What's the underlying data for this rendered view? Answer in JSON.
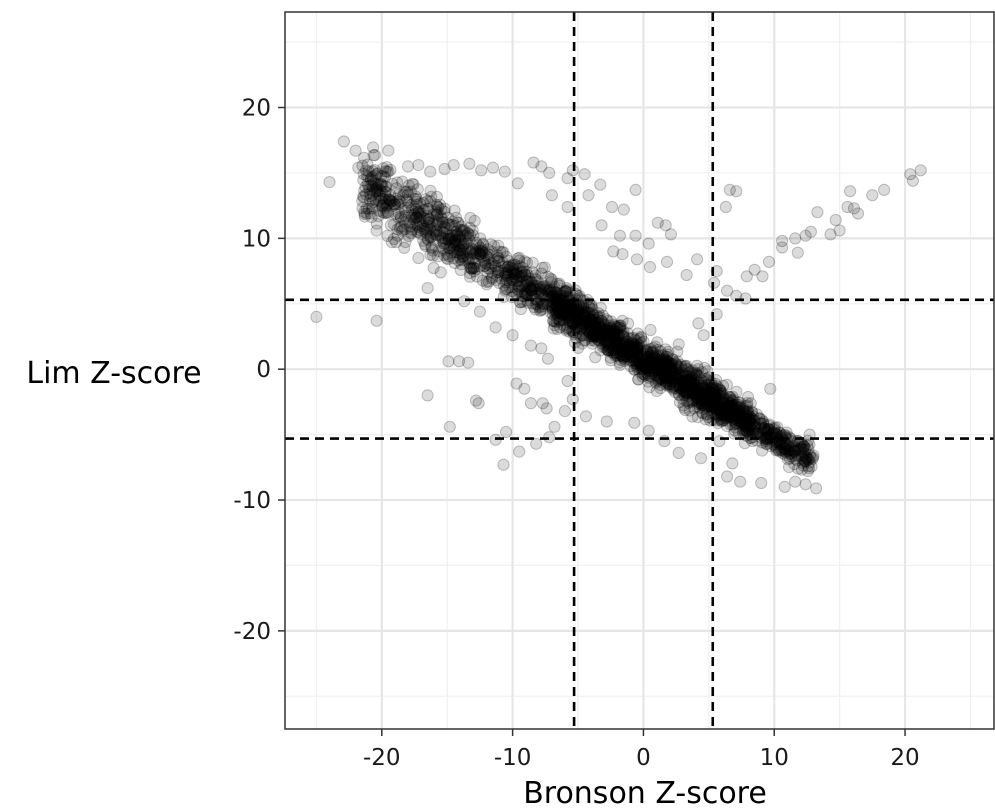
{
  "chart_data": {
    "type": "scatter",
    "title": "",
    "xlabel": "Bronson Z-score",
    "ylabel": "Lim Z-score",
    "xlim": [
      -27.4,
      26.8
    ],
    "ylim": [
      -27.5,
      27.3
    ],
    "x_ticks": [
      -20,
      -10,
      0,
      10,
      20
    ],
    "y_ticks": [
      20,
      10,
      0,
      -10,
      -20
    ],
    "grid": true,
    "point_color": "#000000",
    "point_opacity": 0.14,
    "reference_lines": {
      "vertical": [
        -5.3,
        5.3
      ],
      "horizontal": [
        5.3,
        -5.3
      ],
      "style": "dashed"
    },
    "main_trend": {
      "slope": -0.62,
      "intercept": 0.9
    },
    "points": [
      [
        -22.9,
        17.4
      ],
      [
        -22.0,
        16.7
      ],
      [
        -24.0,
        14.3
      ],
      [
        -21.8,
        15.4
      ],
      [
        -21.2,
        15.2
      ],
      [
        -20.4,
        14.9
      ],
      [
        -19.6,
        15.1
      ],
      [
        -18.0,
        15.5
      ],
      [
        -17.2,
        15.6
      ],
      [
        -16.3,
        15.1
      ],
      [
        -15.2,
        15.3
      ],
      [
        -14.5,
        15.6
      ],
      [
        -13.3,
        15.7
      ],
      [
        -12.4,
        15.2
      ],
      [
        -11.5,
        15.4
      ],
      [
        -10.6,
        15.1
      ],
      [
        -9.6,
        14.2
      ],
      [
        -8.4,
        15.8
      ],
      [
        -7.8,
        15.5
      ],
      [
        -7.2,
        15.0
      ],
      [
        -7.0,
        13.3
      ],
      [
        -5.8,
        14.6
      ],
      [
        -5.4,
        15.2
      ],
      [
        -4.5,
        14.9
      ],
      [
        -5.8,
        12.4
      ],
      [
        -4.2,
        13.3
      ],
      [
        -3.3,
        14.1
      ],
      [
        -2.4,
        12.4
      ],
      [
        -1.5,
        12.2
      ],
      [
        -0.6,
        13.7
      ],
      [
        1.1,
        11.2
      ],
      [
        1.7,
        11.0
      ],
      [
        2.1,
        10.3
      ],
      [
        0.4,
        9.6
      ],
      [
        -0.6,
        10.2
      ],
      [
        -1.8,
        10.2
      ],
      [
        -3.2,
        11.0
      ],
      [
        -2.3,
        9.0
      ],
      [
        -1.6,
        8.8
      ],
      [
        -0.5,
        8.4
      ],
      [
        0.5,
        7.8
      ],
      [
        1.8,
        8.2
      ],
      [
        4.1,
        8.4
      ],
      [
        3.3,
        7.2
      ],
      [
        5.6,
        7.5
      ],
      [
        5.4,
        6.6
      ],
      [
        6.4,
        6.0
      ],
      [
        7.8,
        5.4
      ],
      [
        6.6,
        13.7
      ],
      [
        7.1,
        13.6
      ],
      [
        6.3,
        12.4
      ],
      [
        10.6,
        9.8
      ],
      [
        11.6,
        10.0
      ],
      [
        13.3,
        12.0
      ],
      [
        14.7,
        11.4
      ],
      [
        15.6,
        12.4
      ],
      [
        16.4,
        11.9
      ],
      [
        17.5,
        13.3
      ],
      [
        18.4,
        13.7
      ],
      [
        20.4,
        14.9
      ],
      [
        21.2,
        15.2
      ],
      [
        20.6,
        14.4
      ],
      [
        15.0,
        10.6
      ],
      [
        14.3,
        10.3
      ],
      [
        12.8,
        10.5
      ],
      [
        10.6,
        9.3
      ],
      [
        11.8,
        8.9
      ],
      [
        9.6,
        8.2
      ],
      [
        8.5,
        7.6
      ],
      [
        7.9,
        7.1
      ],
      [
        9.1,
        7.1
      ],
      [
        7.1,
        5.6
      ],
      [
        15.8,
        13.6
      ],
      [
        16.1,
        12.3
      ],
      [
        12.4,
        10.2
      ],
      [
        -25.0,
        4.0
      ],
      [
        -20.4,
        3.7
      ],
      [
        -16.5,
        6.2
      ],
      [
        -14.9,
        0.6
      ],
      [
        -14.1,
        0.6
      ],
      [
        -13.4,
        0.5
      ],
      [
        -16.5,
        -2.0
      ],
      [
        -14.8,
        -4.4
      ],
      [
        -12.8,
        -2.4
      ],
      [
        -12.6,
        -2.6
      ],
      [
        -10.5,
        -4.8
      ],
      [
        -11.3,
        -5.4
      ],
      [
        -10.7,
        -7.3
      ],
      [
        -9.5,
        -6.3
      ],
      [
        -8.2,
        -5.7
      ],
      [
        -7.2,
        -5.2
      ],
      [
        -6.8,
        -4.4
      ],
      [
        -9.7,
        -1.1
      ],
      [
        -9.1,
        -1.5
      ],
      [
        -8.6,
        -2.6
      ],
      [
        -7.7,
        -2.6
      ],
      [
        -7.4,
        -3.0
      ],
      [
        -6.0,
        -3.2
      ],
      [
        -5.4,
        -2.3
      ],
      [
        -5.8,
        -0.9
      ],
      [
        -7.3,
        0.8
      ],
      [
        -7.8,
        1.6
      ],
      [
        -8.6,
        1.8
      ],
      [
        -10.0,
        2.6
      ],
      [
        -11.3,
        3.2
      ],
      [
        -12.5,
        4.4
      ],
      [
        -13.7,
        5.2
      ],
      [
        -15.5,
        7.4
      ],
      [
        -17.2,
        8.5
      ],
      [
        -18.8,
        10.2
      ],
      [
        -20.2,
        12.1
      ],
      [
        -19.0,
        12.6
      ],
      [
        -21.0,
        14.0
      ],
      [
        6.4,
        -8.2
      ],
      [
        7.4,
        -8.6
      ],
      [
        9.0,
        -8.7
      ],
      [
        10.8,
        -9.0
      ],
      [
        11.6,
        -8.6
      ],
      [
        12.4,
        -8.8
      ],
      [
        13.2,
        -9.1
      ],
      [
        13.0,
        -6.6
      ],
      [
        12.3,
        -5.9
      ],
      [
        10.9,
        -5.8
      ],
      [
        9.4,
        -5.3
      ],
      [
        12.7,
        -5.0
      ],
      [
        8.6,
        -4.5
      ],
      [
        7.5,
        -3.7
      ],
      [
        9.7,
        -1.5
      ],
      [
        5.6,
        4.2
      ],
      [
        4.2,
        3.5
      ],
      [
        4.6,
        2.6
      ],
      [
        2.7,
        1.9
      ],
      [
        1.0,
        0.8
      ],
      [
        -0.7,
        -4.1
      ],
      [
        -2.8,
        -4.0
      ],
      [
        -4.4,
        -3.6
      ],
      [
        0.4,
        -4.7
      ],
      [
        1.6,
        -5.5
      ],
      [
        2.7,
        -6.4
      ],
      [
        4.4,
        -6.8
      ],
      [
        5.8,
        -5.5
      ],
      [
        6.8,
        -7.2
      ],
      [
        -3.4,
        2.2
      ],
      [
        -2.0,
        1.0
      ],
      [
        -1.6,
        3.7
      ]
    ]
  }
}
